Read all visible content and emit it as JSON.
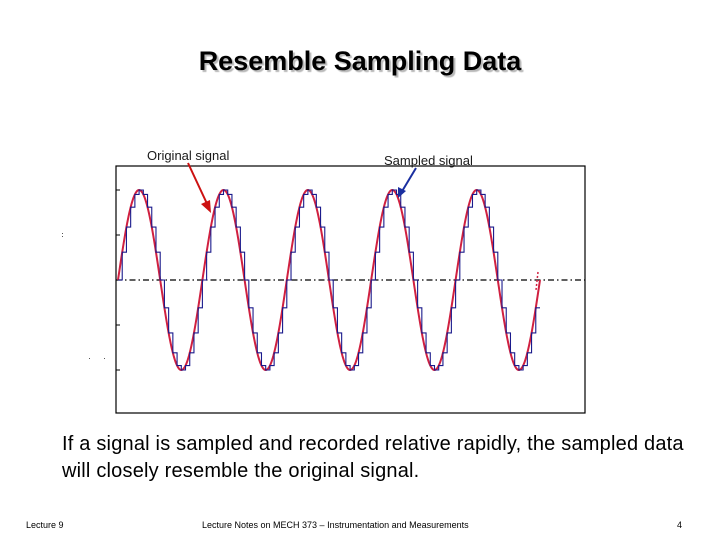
{
  "title": "Resemble Sampling Data",
  "labels": {
    "original": "Original signal",
    "sampled": "Sampled signal"
  },
  "caption": "If a signal is sampled and recorded relative rapidly, the sampled data will closely resemble the original signal.",
  "footer": {
    "left": "Lecture 9",
    "center": "Lecture Notes on MECH 373 – Instrumentation and Measurements",
    "right": "4"
  },
  "colors": {
    "original": "#d02040",
    "sampled": "#1a1a8c",
    "original_arrow": "#cc1111",
    "sampled_arrow": "#1a2fa0",
    "frame": "#000000",
    "axis": "#000000"
  },
  "chart_data": {
    "type": "line",
    "title": "",
    "xlabel": "",
    "ylabel": "",
    "grid": false,
    "series": [
      {
        "name": "Original signal",
        "kind": "sine",
        "amplitude": 1,
        "cycles": 5,
        "x_range": [
          0,
          5
        ],
        "style": "continuous"
      },
      {
        "name": "Sampled signal",
        "kind": "sample-and-hold",
        "samples_per_cycle": 20,
        "x_range": [
          0,
          5
        ],
        "style": "staircase"
      }
    ],
    "zero_line": {
      "value": 0,
      "style": "dash-dot"
    },
    "ylim": [
      -1.05,
      1.05
    ]
  }
}
